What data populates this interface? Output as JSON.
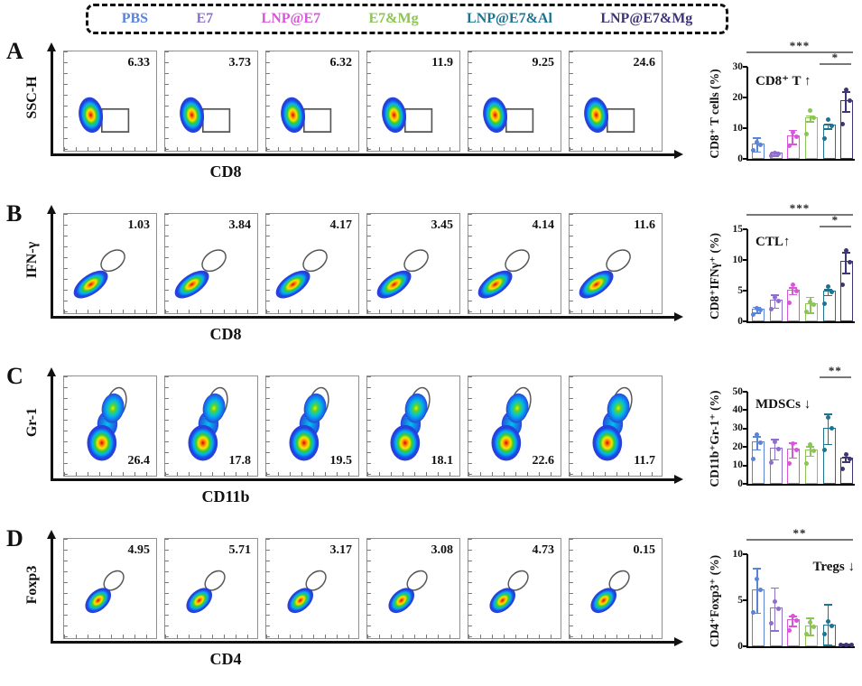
{
  "legend": {
    "groups": [
      {
        "label": "PBS",
        "color": "#5b84d6"
      },
      {
        "label": "E7",
        "color": "#8e6fcb"
      },
      {
        "label": "LNP@E7",
        "color": "#d857d8"
      },
      {
        "label": "E7&Mg",
        "color": "#8cc455"
      },
      {
        "label": "LNP@E7&Al",
        "color": "#1d7490"
      },
      {
        "label": "LNP@E7&Mg",
        "color": "#3e3577"
      }
    ]
  },
  "panels": [
    {
      "letter": "A",
      "flow_ylabel": "SSC-H",
      "flow_xlabel": "CD8",
      "blob": "side-rect",
      "value_pos": "top-right",
      "plots": [
        {
          "value": "6.33"
        },
        {
          "value": "3.73"
        },
        {
          "value": "6.32"
        },
        {
          "value": "11.9"
        },
        {
          "value": "9.25"
        },
        {
          "value": "24.6"
        }
      ]
    },
    {
      "letter": "B",
      "flow_ylabel": "IFN-γ",
      "flow_xlabel": "CD8",
      "blob": "diag",
      "value_pos": "top-right",
      "plots": [
        {
          "value": "1.03"
        },
        {
          "value": "3.84"
        },
        {
          "value": "4.17"
        },
        {
          "value": "3.45"
        },
        {
          "value": "4.14"
        },
        {
          "value": "11.6"
        }
      ]
    },
    {
      "letter": "C",
      "flow_ylabel": "Gr-1",
      "flow_xlabel": "CD11b",
      "blob": "vert",
      "value_pos": "bottom-right",
      "plots": [
        {
          "value": "26.4"
        },
        {
          "value": "17.8"
        },
        {
          "value": "19.5"
        },
        {
          "value": "18.1"
        },
        {
          "value": "22.6"
        },
        {
          "value": "11.7"
        }
      ]
    },
    {
      "letter": "D",
      "flow_ylabel": "Foxp3",
      "flow_xlabel": "CD4",
      "blob": "small-diag",
      "value_pos": "top-right",
      "plots": [
        {
          "value": "4.95"
        },
        {
          "value": "5.71"
        },
        {
          "value": "3.17"
        },
        {
          "value": "3.08"
        },
        {
          "value": "4.73"
        },
        {
          "value": "0.15"
        }
      ]
    }
  ],
  "chart_data": [
    {
      "type": "bar",
      "panel": "A",
      "ylabel": "CD8⁺ T cells (%)",
      "categories": [
        "PBS",
        "E7",
        "LNP@E7",
        "E7&Mg",
        "LNP@E7&Al",
        "LNP@E7&Mg"
      ],
      "values": [
        4.5,
        1.5,
        7.0,
        13.0,
        10.5,
        18.5
      ],
      "errors": [
        2.5,
        0.8,
        2.5,
        1.2,
        1.0,
        3.5
      ],
      "ylim": [
        0,
        30
      ],
      "yticks": [
        0,
        10,
        20,
        30
      ],
      "annotation": "CD8⁺ T ↑",
      "annotation_align": "left",
      "significance": [
        {
          "label": "***",
          "span": "all",
          "row": 0
        },
        {
          "label": "*",
          "span": [
            4,
            5
          ],
          "row": 1
        }
      ]
    },
    {
      "type": "bar",
      "panel": "B",
      "ylabel": "CD8⁺IFNγ⁺ (%)",
      "categories": [
        "PBS",
        "E7",
        "LNP@E7",
        "E7&Mg",
        "LNP@E7&Al",
        "LNP@E7&Mg"
      ],
      "values": [
        1.8,
        3.2,
        4.9,
        2.6,
        4.7,
        9.5
      ],
      "errors": [
        0.6,
        1.2,
        0.7,
        1.4,
        0.6,
        1.8
      ],
      "ylim": [
        0,
        15
      ],
      "yticks": [
        0,
        5,
        10,
        15
      ],
      "annotation": "CTL↑",
      "annotation_align": "left",
      "significance": [
        {
          "label": "***",
          "span": "all",
          "row": 0
        },
        {
          "label": "*",
          "span": [
            4,
            5
          ],
          "row": 1
        }
      ]
    },
    {
      "type": "bar",
      "panel": "C",
      "ylabel": "CD11b⁺Gr-1⁺ (%)",
      "categories": [
        "PBS",
        "E7",
        "LNP@E7",
        "E7&Mg",
        "LNP@E7&Al",
        "LNP@E7&Mg"
      ],
      "values": [
        22.0,
        18.5,
        18.0,
        17.5,
        29.5,
        13.0
      ],
      "errors": [
        4.0,
        6.0,
        4.5,
        3.0,
        8.5,
        1.5
      ],
      "ylim": [
        0,
        50
      ],
      "yticks": [
        0,
        10,
        20,
        30,
        40,
        50
      ],
      "annotation": "MDSCs ↓",
      "annotation_align": "left",
      "significance": [
        {
          "label": "**",
          "span": [
            4,
            5
          ],
          "row": 0
        }
      ]
    },
    {
      "type": "bar",
      "panel": "D",
      "ylabel": "CD4⁺Foxp3⁺ (%)",
      "categories": [
        "PBS",
        "E7",
        "LNP@E7",
        "E7&Mg",
        "LNP@E7&Al",
        "LNP@E7&Mg"
      ],
      "values": [
        6.0,
        4.0,
        2.7,
        2.1,
        2.2,
        0.1
      ],
      "errors": [
        2.5,
        2.4,
        0.6,
        1.0,
        2.4,
        0.1
      ],
      "ylim": [
        0,
        10
      ],
      "yticks": [
        0,
        5,
        10
      ],
      "annotation": "Tregs ↓",
      "annotation_align": "right",
      "significance": [
        {
          "label": "**",
          "span": "all",
          "row": 0
        }
      ]
    }
  ]
}
